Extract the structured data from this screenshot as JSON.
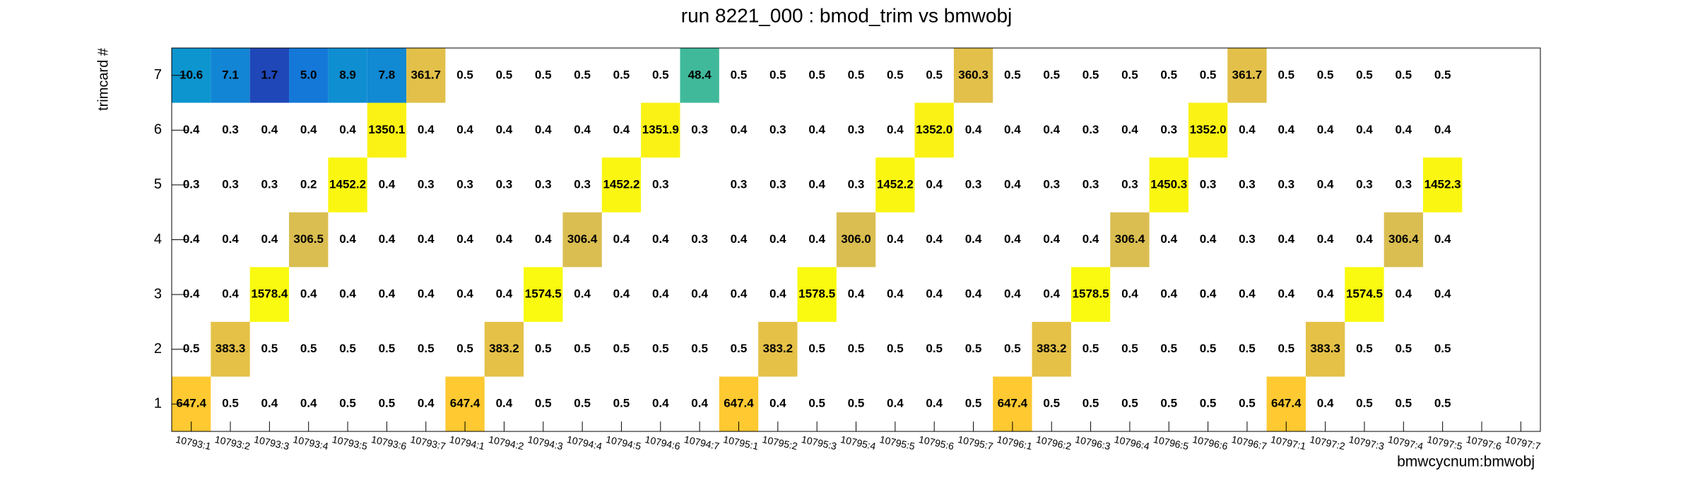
{
  "chart_data": {
    "type": "heatmap",
    "title": "run 8221_000 : bmod_trim vs bmwobj",
    "x_label": "bmwcycnum:bmwobj",
    "y_label": "trimcard #",
    "categories": [
      "10793:1",
      "10793:2",
      "10793:3",
      "10793:4",
      "10793:5",
      "10793:6",
      "10793:7",
      "10794:1",
      "10794:2",
      "10794:3",
      "10794:4",
      "10794:5",
      "10794:6",
      "10794:7",
      "10795:1",
      "10795:2",
      "10795:3",
      "10795:4",
      "10795:5",
      "10795:6",
      "10795:7",
      "10796:1",
      "10796:2",
      "10796:3",
      "10796:4",
      "10796:5",
      "10796:6",
      "10796:7",
      "10797:1",
      "10797:2",
      "10797:3",
      "10797:4",
      "10797:5",
      "10797:6",
      "10797:7"
    ],
    "y": [
      1,
      2,
      3,
      4,
      5,
      6,
      7
    ],
    "ylim": [
      0.5,
      7.5
    ],
    "yticks": [
      1,
      2,
      3,
      4,
      5,
      6,
      7
    ],
    "zlog": true,
    "zlim": [
      1,
      1600
    ],
    "palette": [
      "#352a87",
      "#0f5cdd",
      "#1481d6",
      "#06a4ca",
      "#2eb7a4",
      "#87bf77",
      "#d1bb59",
      "#fec832",
      "#f9fb0e"
    ],
    "values": [
      [
        647.4,
        0.5,
        0.4,
        0.4,
        0.5,
        0.5,
        0.4,
        647.4,
        0.4,
        0.5,
        0.5,
        0.5,
        0.4,
        0.4,
        647.4,
        0.4,
        0.5,
        0.5,
        0.4,
        0.4,
        0.5,
        647.4,
        0.5,
        0.5,
        0.5,
        0.5,
        0.5,
        0.5,
        647.4,
        0.4,
        0.5,
        0.5,
        0.5,
        null,
        null
      ],
      [
        0.5,
        383.3,
        0.5,
        0.5,
        0.5,
        0.5,
        0.5,
        0.5,
        383.2,
        0.5,
        0.5,
        0.5,
        0.5,
        0.5,
        0.5,
        383.2,
        0.5,
        0.5,
        0.5,
        0.5,
        0.5,
        0.5,
        383.2,
        0.5,
        0.5,
        0.5,
        0.5,
        0.5,
        0.5,
        383.3,
        0.5,
        0.5,
        0.5,
        null,
        null
      ],
      [
        0.4,
        0.4,
        1578.4,
        0.4,
        0.4,
        0.4,
        0.4,
        0.4,
        0.4,
        1574.5,
        0.4,
        0.4,
        0.4,
        0.4,
        0.4,
        0.4,
        1578.5,
        0.4,
        0.4,
        0.4,
        0.4,
        0.4,
        0.4,
        1578.5,
        0.4,
        0.4,
        0.4,
        0.4,
        0.4,
        0.4,
        1574.5,
        0.4,
        0.4,
        null,
        null
      ],
      [
        0.4,
        0.4,
        0.4,
        306.5,
        0.4,
        0.4,
        0.4,
        0.4,
        0.4,
        0.4,
        306.4,
        0.4,
        0.4,
        0.3,
        0.4,
        0.4,
        0.4,
        306.0,
        0.4,
        0.4,
        0.4,
        0.4,
        0.4,
        0.4,
        306.4,
        0.4,
        0.4,
        0.3,
        0.4,
        0.4,
        0.4,
        306.4,
        0.4,
        null,
        null
      ],
      [
        0.3,
        0.3,
        0.3,
        0.2,
        1452.2,
        0.4,
        0.3,
        0.3,
        0.3,
        0.3,
        0.3,
        1452.2,
        0.3,
        null,
        0.3,
        0.3,
        0.4,
        0.3,
        1452.2,
        0.4,
        0.3,
        0.4,
        0.3,
        0.3,
        0.3,
        1450.3,
        0.3,
        0.3,
        0.3,
        0.4,
        0.3,
        0.3,
        1452.3,
        null,
        null
      ],
      [
        0.4,
        0.3,
        0.4,
        0.4,
        0.4,
        1350.1,
        0.4,
        0.4,
        0.4,
        0.4,
        0.4,
        0.4,
        1351.9,
        0.3,
        0.4,
        0.3,
        0.4,
        0.3,
        0.4,
        1352.0,
        0.4,
        0.4,
        0.4,
        0.3,
        0.4,
        0.3,
        1352.0,
        0.4,
        0.4,
        0.4,
        0.4,
        0.4,
        0.4,
        null,
        null
      ],
      [
        10.6,
        7.1,
        1.7,
        5.0,
        8.9,
        7.8,
        361.7,
        0.5,
        0.5,
        0.5,
        0.5,
        0.5,
        0.5,
        48.4,
        0.5,
        0.5,
        0.5,
        0.5,
        0.5,
        0.5,
        360.3,
        0.5,
        0.5,
        0.5,
        0.5,
        0.5,
        0.5,
        361.7,
        0.5,
        0.5,
        0.5,
        0.5,
        0.5,
        null,
        null
      ]
    ],
    "value_labels": [
      [
        "647.4",
        "0.5",
        "0.4",
        "0.4",
        "0.5",
        "0.5",
        "0.4",
        "647.4",
        "0.4",
        "0.5",
        "0.5",
        "0.5",
        "0.4",
        "0.4",
        "647.4",
        "0.4",
        "0.5",
        "0.5",
        "0.4",
        "0.4",
        "0.5",
        "647.4",
        "0.5",
        "0.5",
        "0.5",
        "0.5",
        "0.5",
        "0.5",
        "647.4",
        "0.4",
        "0.5",
        "0.5",
        "0.5",
        null,
        null
      ],
      [
        "0.5",
        "383.3",
        "0.5",
        "0.5",
        "0.5",
        "0.5",
        "0.5",
        "0.5",
        "383.2",
        "0.5",
        "0.5",
        "0.5",
        "0.5",
        "0.5",
        "0.5",
        "383.2",
        "0.5",
        "0.5",
        "0.5",
        "0.5",
        "0.5",
        "0.5",
        "383.2",
        "0.5",
        "0.5",
        "0.5",
        "0.5",
        "0.5",
        "0.5",
        "383.3",
        "0.5",
        "0.5",
        "0.5",
        null,
        null
      ],
      [
        "0.4",
        "0.4",
        "1578.4",
        "0.4",
        "0.4",
        "0.4",
        "0.4",
        "0.4",
        "0.4",
        "1574.5",
        "0.4",
        "0.4",
        "0.4",
        "0.4",
        "0.4",
        "0.4",
        "1578.5",
        "0.4",
        "0.4",
        "0.4",
        "0.4",
        "0.4",
        "0.4",
        "1578.5",
        "0.4",
        "0.4",
        "0.4",
        "0.4",
        "0.4",
        "0.4",
        "1574.5",
        "0.4",
        "0.4",
        null,
        null
      ],
      [
        "0.4",
        "0.4",
        "0.4",
        "306.5",
        "0.4",
        "0.4",
        "0.4",
        "0.4",
        "0.4",
        "0.4",
        "306.4",
        "0.4",
        "0.4",
        "0.3",
        "0.4",
        "0.4",
        "0.4",
        "306.0",
        "0.4",
        "0.4",
        "0.4",
        "0.4",
        "0.4",
        "0.4",
        "306.4",
        "0.4",
        "0.4",
        "0.3",
        "0.4",
        "0.4",
        "0.4",
        "306.4",
        "0.4",
        null,
        null
      ],
      [
        "0.3",
        "0.3",
        "0.3",
        "0.2",
        "1452.2",
        "0.4",
        "0.3",
        "0.3",
        "0.3",
        "0.3",
        "0.3",
        "1452.2",
        "0.3",
        null,
        "0.3",
        "0.3",
        "0.4",
        "0.3",
        "1452.2",
        "0.4",
        "0.3",
        "0.4",
        "0.3",
        "0.3",
        "0.3",
        "1450.3",
        "0.3",
        "0.3",
        "0.3",
        "0.4",
        "0.3",
        "0.3",
        "1452.3",
        null,
        null
      ],
      [
        "0.4",
        "0.3",
        "0.4",
        "0.4",
        "0.4",
        "1350.1",
        "0.4",
        "0.4",
        "0.4",
        "0.4",
        "0.4",
        "0.4",
        "1351.9",
        "0.3",
        "0.4",
        "0.3",
        "0.4",
        "0.3",
        "0.4",
        "1352.0",
        "0.4",
        "0.4",
        "0.4",
        "0.3",
        "0.4",
        "0.3",
        "1352.0",
        "0.4",
        "0.4",
        "0.4",
        "0.4",
        "0.4",
        "0.4",
        null,
        null
      ],
      [
        "10.6",
        "7.1",
        "1.7",
        "5.0",
        "8.9",
        "7.8",
        "361.7",
        "0.5",
        "0.5",
        "0.5",
        "0.5",
        "0.5",
        "0.5",
        "48.4",
        "0.5",
        "0.5",
        "0.5",
        "0.5",
        "0.5",
        "0.5",
        "360.3",
        "0.5",
        "0.5",
        "0.5",
        "0.5",
        "0.5",
        "0.5",
        "361.7",
        "0.5",
        "0.5",
        "0.5",
        "0.5",
        "0.5",
        null,
        null
      ]
    ]
  }
}
